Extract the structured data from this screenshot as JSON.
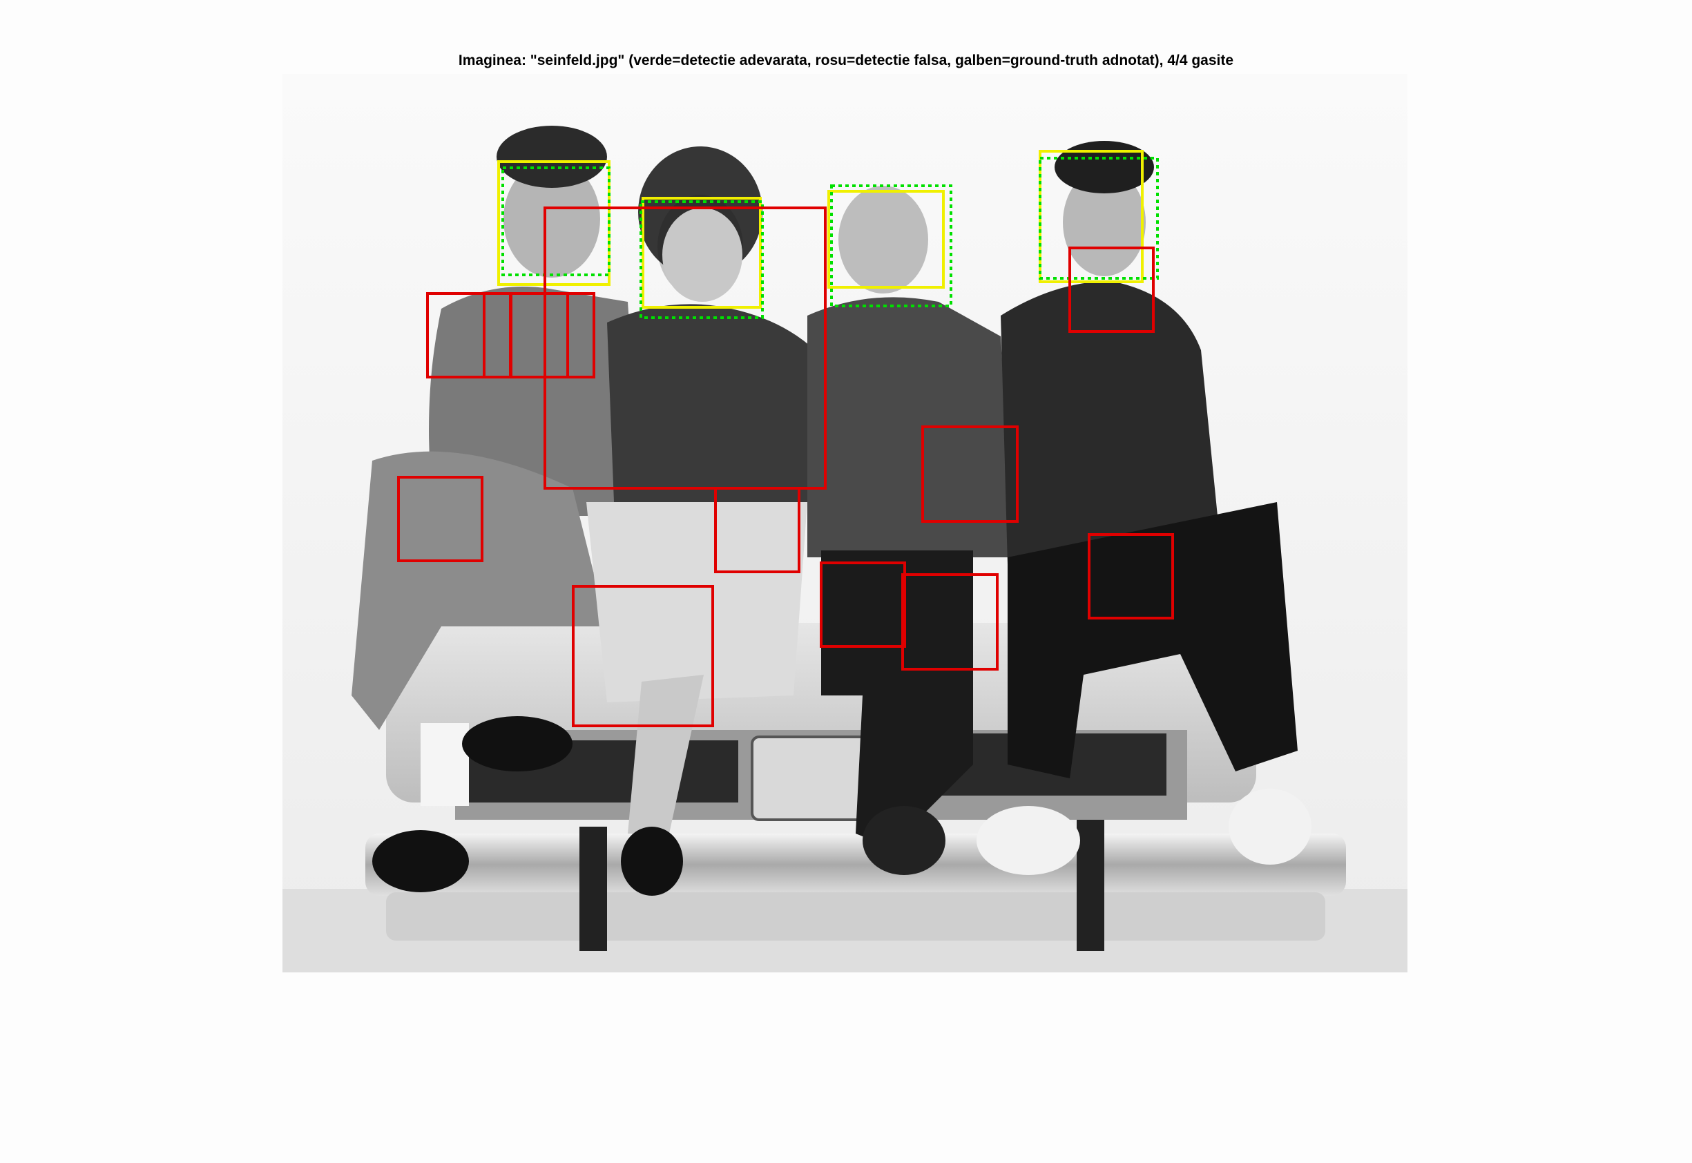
{
  "figure": {
    "title": "Imaginea: \"seinfeld.jpg\" (verde=detectie adevarata, rosu=detectie falsa, galben=ground-truth adnotat), 4/4 gasite"
  },
  "colors": {
    "background": "#fdfdfd",
    "true_detection": "#00e000",
    "false_detection": "#e00000",
    "ground_truth": "#f0f000"
  },
  "photo": {
    "description_visible": "grayscale photo of four people sitting on the back of a car"
  }
}
